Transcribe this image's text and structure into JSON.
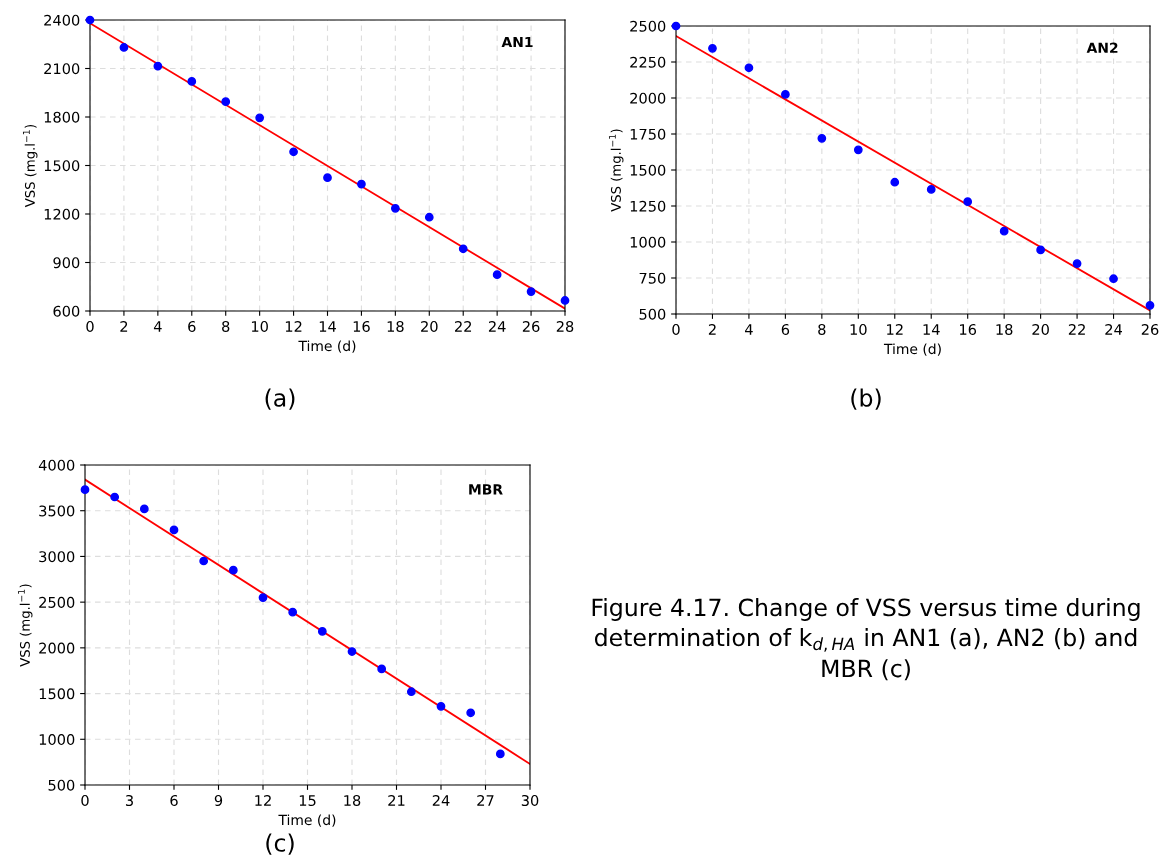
{
  "chart_data": [
    {
      "type": "scatter",
      "xlabel": "Time (d)",
      "ylabel": "VSS (mg.l$^{−1}$)",
      "annotations": [
        "AN1",
        "(a)"
      ],
      "xlim": [
        0,
        28
      ],
      "xticks": [
        0,
        2,
        4,
        6,
        8,
        10,
        12,
        14,
        16,
        18,
        20,
        22,
        24,
        26,
        28
      ],
      "ylim": [
        600,
        2400
      ],
      "yticks": [
        600,
        900,
        1200,
        1500,
        1800,
        2100,
        2400
      ],
      "grid": true,
      "series": [
        {
          "marker": "circle",
          "color": "#0000ff",
          "x": [
            0,
            2,
            4,
            6,
            8,
            10,
            12,
            14,
            16,
            18,
            20,
            22,
            24,
            26,
            28
          ],
          "values": [
            2400,
            2230,
            2115,
            2020,
            1895,
            1795,
            1585,
            1425,
            1385,
            1235,
            1180,
            985,
            825,
            720,
            665
          ]
        },
        {
          "type": "line",
          "marker": "none",
          "color": "#ff0000",
          "x": [
            0,
            28
          ],
          "values": [
            2380,
            615
          ]
        }
      ]
    },
    {
      "type": "scatter",
      "xlabel": "Time (d)",
      "ylabel": "VSS (mg.l$^{−1}$)",
      "annotations": [
        "AN2",
        "(b)"
      ],
      "xlim": [
        0,
        26
      ],
      "xticks": [
        0,
        2,
        4,
        6,
        8,
        10,
        12,
        14,
        16,
        18,
        20,
        22,
        24,
        26
      ],
      "ylim": [
        500,
        2500
      ],
      "yticks": [
        500,
        750,
        1000,
        1250,
        1500,
        1750,
        2000,
        2250,
        2500
      ],
      "grid": true,
      "series": [
        {
          "marker": "circle",
          "color": "#0000ff",
          "x": [
            0,
            2,
            4,
            6,
            8,
            10,
            12,
            14,
            16,
            18,
            20,
            22,
            24,
            26
          ],
          "values": [
            2500,
            2345,
            2210,
            2025,
            1720,
            1640,
            1415,
            1365,
            1280,
            1075,
            945,
            850,
            745,
            560
          ]
        },
        {
          "type": "line",
          "marker": "none",
          "color": "#ff0000",
          "x": [
            0,
            26
          ],
          "values": [
            2430,
            525
          ]
        }
      ]
    },
    {
      "type": "scatter",
      "xlabel": "Time (d)",
      "ylabel": "VSS (mg.l$^{−1}$)",
      "annotations": [
        "MBR",
        "(c)",
        "Figure 4.17. Change of VSS versus time during determination of k$_{d,HA}$ in AN1 (a), AN2 (b) and MBR (c)"
      ],
      "xlim": [
        0,
        30
      ],
      "xticks": [
        0,
        3,
        6,
        9,
        12,
        15,
        18,
        21,
        24,
        27,
        30
      ],
      "ylim": [
        500,
        4000
      ],
      "yticks": [
        500,
        1000,
        1500,
        2000,
        2500,
        3000,
        3500,
        4000
      ],
      "grid": true,
      "series": [
        {
          "marker": "circle",
          "color": "#0000ff",
          "x": [
            0,
            2,
            4,
            6,
            8,
            10,
            12,
            14,
            16,
            18,
            20,
            22,
            24,
            26,
            28
          ],
          "values": [
            3730,
            3650,
            3520,
            3290,
            2950,
            2850,
            2550,
            2390,
            2180,
            1960,
            1770,
            1520,
            1360,
            1290,
            840
          ]
        },
        {
          "type": "line",
          "marker": "none",
          "color": "#ff0000",
          "x": [
            0,
            30
          ],
          "values": [
            3840,
            730
          ]
        }
      ]
    }
  ]
}
